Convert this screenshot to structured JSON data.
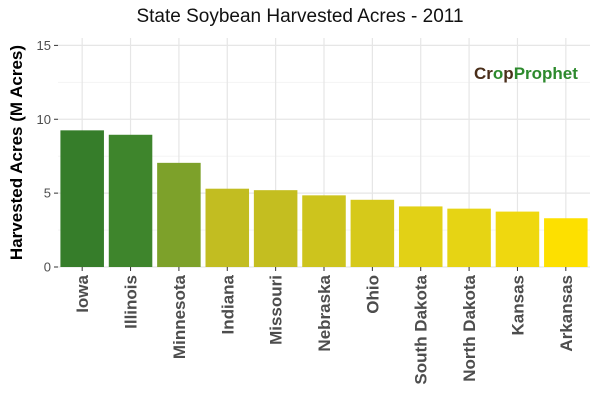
{
  "chart_data": {
    "type": "bar",
    "title": "State Soybean Harvested Acres - 2011",
    "xlabel": "",
    "ylabel": "Harvested Acres (M Acres)",
    "ylim": [
      0,
      15.5
    ],
    "yticks": [
      0,
      5,
      10,
      15
    ],
    "categories": [
      "Iowa",
      "Illinois",
      "Minnesota",
      "Indiana",
      "Missouri",
      "Nebraska",
      "Ohio",
      "South Dakota",
      "North Dakota",
      "Kansas",
      "Arkansas"
    ],
    "values": [
      9.25,
      8.95,
      7.05,
      5.3,
      5.2,
      4.85,
      4.55,
      4.1,
      3.95,
      3.75,
      3.3
    ],
    "colors": [
      "#367d2a",
      "#3e852c",
      "#7da12a",
      "#c2bd21",
      "#c4be20",
      "#cdc41d",
      "#d6c91a",
      "#e2d116",
      "#e6d414",
      "#efd80f",
      "#fde000"
    ],
    "grid": true,
    "legend": "none"
  },
  "watermark": {
    "text": "CropProphet",
    "part1": "Cr",
    "part2": "o",
    "part3": "p",
    "part4": "Prophet",
    "color_dark": "#4a2e1a",
    "color_green": "#2d8a2d"
  }
}
